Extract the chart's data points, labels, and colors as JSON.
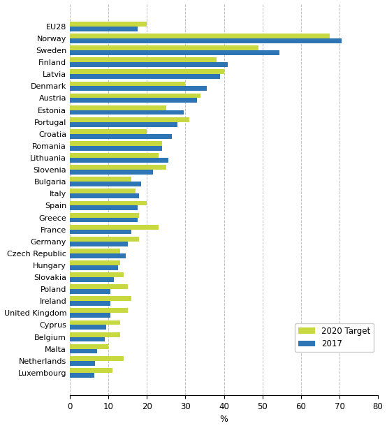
{
  "countries": [
    "EU28",
    "Norway",
    "Sweden",
    "Finland",
    "Latvia",
    "Denmark",
    "Austria",
    "Estonia",
    "Portugal",
    "Croatia",
    "Romania",
    "Lithuania",
    "Slovenia",
    "Bulgaria",
    "Italy",
    "Spain",
    "Greece",
    "France",
    "Germany",
    "Czech Republic",
    "Hungary",
    "Slovakia",
    "Poland",
    "Ireland",
    "United Kingdom",
    "Cyprus",
    "Belgium",
    "Malta",
    "Netherlands",
    "Luxembourg"
  ],
  "target_2020": [
    20,
    67.5,
    49,
    38,
    40,
    30,
    34,
    25,
    31,
    20,
    24,
    23,
    25,
    16,
    17,
    20,
    18,
    23,
    18,
    13,
    13,
    14,
    15,
    16,
    15,
    13,
    13,
    10,
    14,
    11
  ],
  "value_2017": [
    17.5,
    70.5,
    54.5,
    41,
    39,
    35.5,
    33,
    29.5,
    28,
    26.5,
    24,
    25.5,
    21.5,
    18.5,
    18,
    17.5,
    17.5,
    16,
    15,
    14.5,
    12.5,
    11.5,
    10.5,
    10.5,
    10.5,
    9.5,
    9,
    7,
    6.5,
    6.4
  ],
  "color_target": "#c8d840",
  "color_2017": "#2e75b6",
  "xlabel": "%",
  "xlim": [
    0,
    80
  ],
  "xticks": [
    0,
    10,
    20,
    30,
    40,
    50,
    60,
    70,
    80
  ],
  "legend_labels": [
    "2020 Target",
    "2017"
  ],
  "bar_height": 0.4,
  "grid_color": "#c0c0c0"
}
